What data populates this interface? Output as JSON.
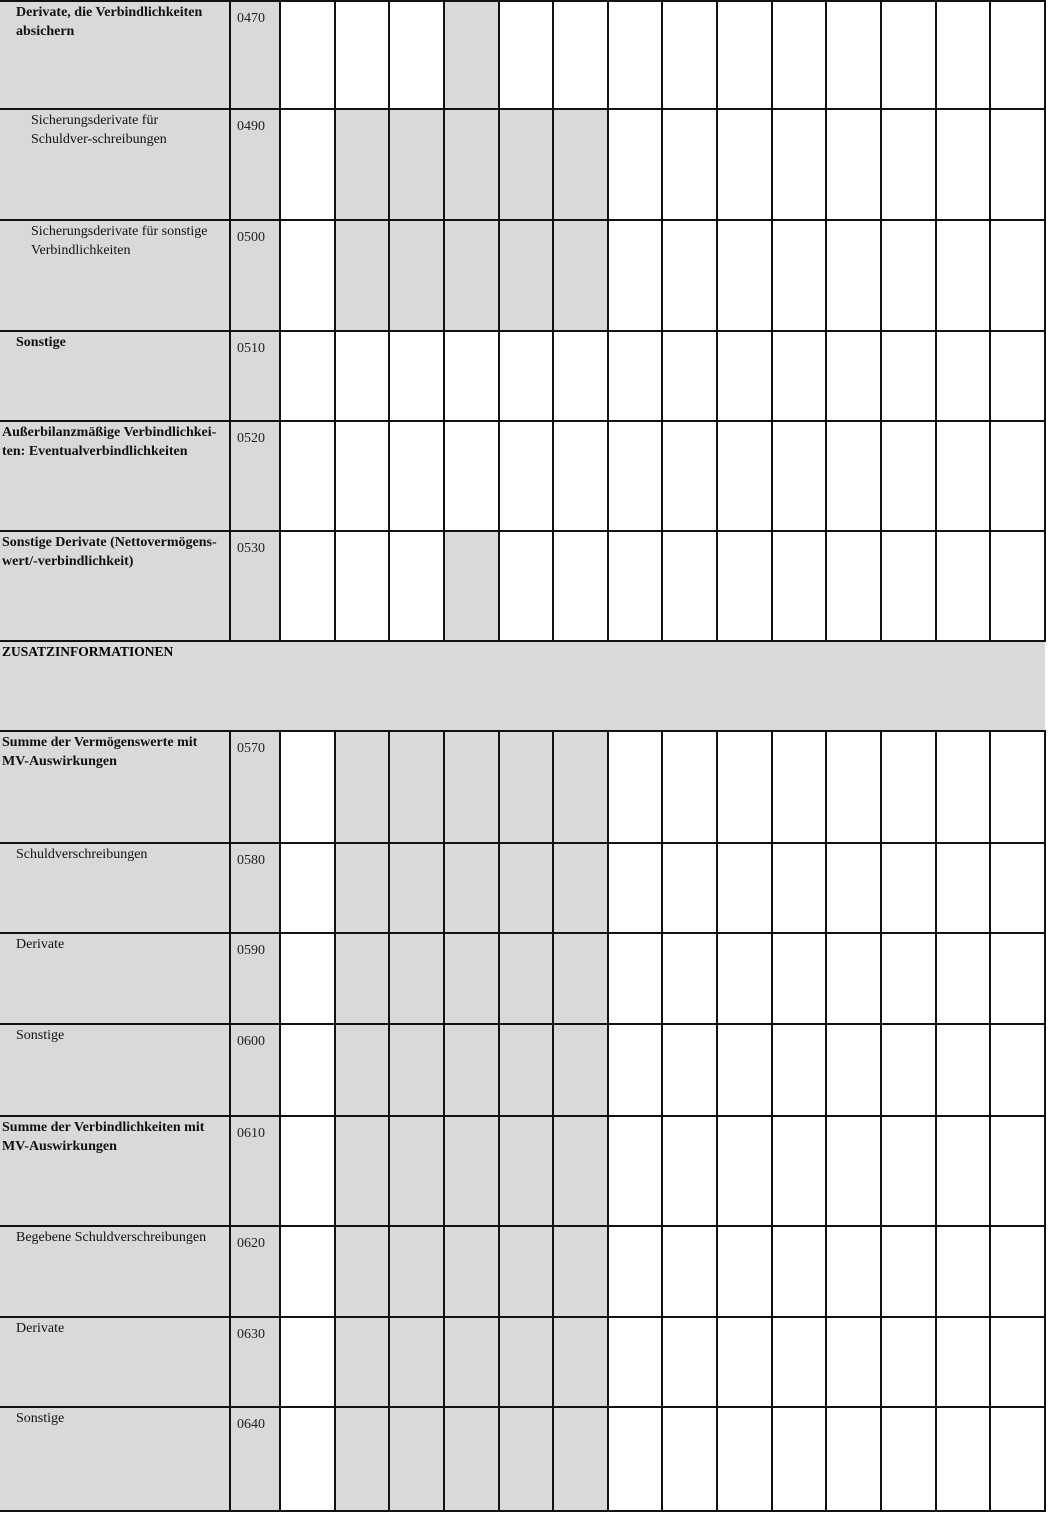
{
  "table": {
    "data_column_count": 14,
    "shade_color": "#d9d9d9",
    "rows": [
      {
        "label": "Derivate, die Verbindlichkeiten absichern",
        "code": "0470",
        "bold": true,
        "indent": 1,
        "shaded": [
          3
        ]
      },
      {
        "label": "Sicherungsderivate für Schuldver-schreibungen",
        "code": "0490",
        "bold": false,
        "indent": 2,
        "shaded": [
          1,
          2,
          3,
          4,
          5
        ]
      },
      {
        "label": "Sicherungsderivate für sonstige Verbindlichkeiten",
        "code": "0500",
        "bold": false,
        "indent": 2,
        "shaded": [
          1,
          2,
          3,
          4,
          5
        ]
      },
      {
        "label": "Sonstige",
        "code": "0510",
        "bold": true,
        "indent": 1,
        "shaded": []
      },
      {
        "label": "Außerbilanzmäßige Verbindlichkei-ten: Eventualverbindlichkeiten",
        "code": "0520",
        "bold": true,
        "indent": 0,
        "shaded": []
      },
      {
        "label": "Sonstige Derivate (Nettovermögens-wert/-verbindlichkeit)",
        "code": "0530",
        "bold": true,
        "indent": 0,
        "shaded": [
          3
        ]
      },
      {
        "section": "ZUSATZINFORMATIONEN"
      },
      {
        "label": "Summe der Vermögenswerte mit MV-Auswirkungen",
        "code": "0570",
        "bold": true,
        "indent": 0,
        "shaded": [
          1,
          2,
          3,
          4,
          5
        ]
      },
      {
        "label": "Schuldverschreibungen",
        "code": "0580",
        "bold": false,
        "indent": 1,
        "shaded": [
          1,
          2,
          3,
          4,
          5
        ]
      },
      {
        "label": "Derivate",
        "code": "0590",
        "bold": false,
        "indent": 1,
        "shaded": [
          1,
          2,
          3,
          4,
          5
        ]
      },
      {
        "label": "Sonstige",
        "code": "0600",
        "bold": false,
        "indent": 1,
        "shaded": [
          1,
          2,
          3,
          4,
          5
        ]
      },
      {
        "label": "Summe der Verbindlichkeiten mit MV-Auswirkungen",
        "code": "0610",
        "bold": true,
        "indent": 0,
        "shaded": [
          1,
          2,
          3,
          4,
          5
        ]
      },
      {
        "label": "Begebene Schuldverschreibungen",
        "code": "0620",
        "bold": false,
        "indent": 1,
        "shaded": [
          1,
          2,
          3,
          4,
          5
        ]
      },
      {
        "label": "Derivate",
        "code": "0630",
        "bold": false,
        "indent": 1,
        "shaded": [
          1,
          2,
          3,
          4,
          5
        ]
      },
      {
        "label": "Sonstige",
        "code": "0640",
        "bold": false,
        "indent": 1,
        "shaded": [
          1,
          2,
          3,
          4,
          5
        ]
      }
    ]
  }
}
